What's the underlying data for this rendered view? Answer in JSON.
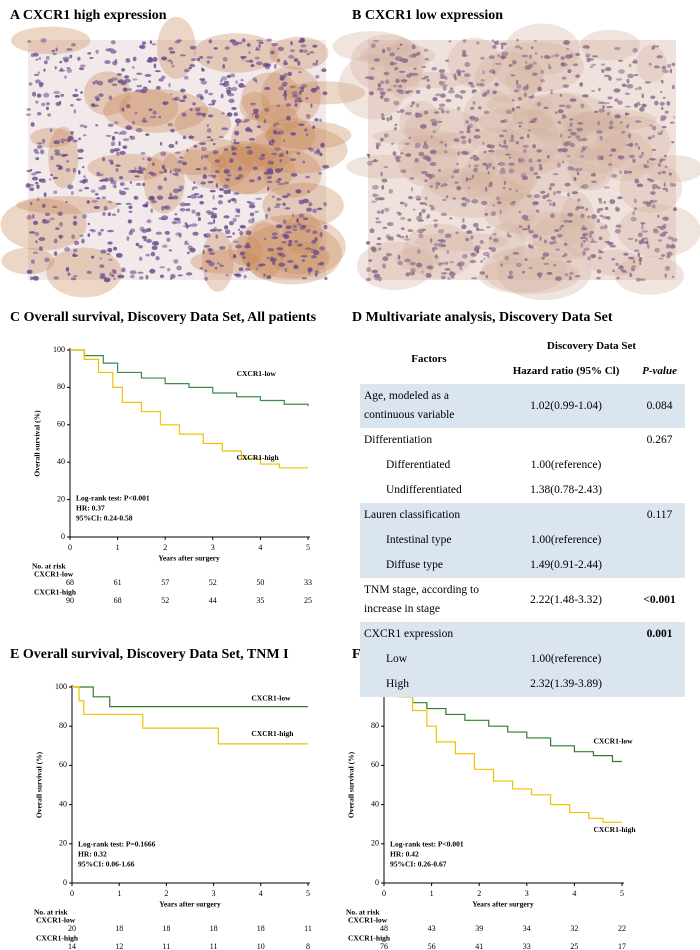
{
  "panels": {
    "a": {
      "title": "A CXCR1 high expression"
    },
    "b": {
      "title": "B CXCR1 low expression"
    }
  },
  "table": {
    "title": "D Multivariate analysis, Discovery Data Set",
    "header": {
      "factors": "Factors",
      "group": "Discovery Data Set",
      "hr": "Hazard ratio (95% Cl)",
      "p": "P-value"
    },
    "rows": [
      {
        "factor": "Age, modeled as a continuous variable",
        "hr": "1.02(0.99-1.04)",
        "p": "0.084",
        "shaded": true
      },
      {
        "factor": "Differentiation",
        "p": "0.267"
      },
      {
        "factor": "Differentiated",
        "hr": "1.00(reference)",
        "indent": true
      },
      {
        "factor": "Undifferentiated",
        "hr": "1.38(0.78-2.43)",
        "indent": true
      },
      {
        "factor": "Lauren classification",
        "p": "0.117",
        "shaded": true
      },
      {
        "factor": "Intestinal type",
        "hr": "1.00(reference)",
        "indent": true,
        "shaded": true
      },
      {
        "factor": "Diffuse type",
        "hr": "1.49(0.91-2.44)",
        "indent": true,
        "shaded": true
      },
      {
        "factor": "TNM stage, according to increase in stage",
        "hr": "2.22(1.48-3.32)",
        "p": "<0.001",
        "bold": true
      },
      {
        "factor": "CXCR1 expression",
        "p": "0.001",
        "bold": true,
        "shaded": true
      },
      {
        "factor": "Low",
        "hr": "1.00(reference)",
        "indent": true,
        "shaded": true
      },
      {
        "factor": "High",
        "hr": "2.32(1.39-3.89)",
        "indent": true,
        "shaded": true
      }
    ]
  },
  "chart_data": [
    {
      "type": "line",
      "title": "C Overall survival, Discovery Data Set, All patients",
      "xlabel": "Years after surgery",
      "ylabel": "Overall survival (%)",
      "xlim": [
        0,
        5
      ],
      "ylim": [
        0,
        100
      ],
      "xticks": [
        0,
        1,
        2,
        3,
        4,
        5
      ],
      "yticks": [
        0,
        20,
        40,
        60,
        80,
        100
      ],
      "step": true,
      "series": [
        {
          "name": "CXCR1-low",
          "color": "#3a8c48",
          "x": [
            0,
            0.3,
            0.7,
            1.0,
            1.5,
            2.0,
            2.5,
            3.0,
            3.5,
            4.0,
            4.5,
            5
          ],
          "values": [
            100,
            97,
            93,
            88,
            85,
            82,
            80,
            77,
            75,
            73,
            71,
            70
          ]
        },
        {
          "name": "CXCR1-high",
          "color": "#f2c200",
          "x": [
            0,
            0.3,
            0.6,
            0.9,
            1.1,
            1.5,
            1.9,
            2.3,
            2.8,
            3.2,
            3.6,
            4.0,
            4.4,
            5
          ],
          "values": [
            100,
            95,
            88,
            80,
            72,
            67,
            60,
            55,
            50,
            46,
            42,
            39,
            37,
            37
          ]
        }
      ],
      "annotations": [
        "Log-rank test: P<0.001",
        "HR: 0.37",
        "95%CI: 0.24-0.58"
      ],
      "at_risk": {
        "title": "No. at risk",
        "rows": [
          {
            "name": "CXCR1-low",
            "values": [
              68,
              61,
              57,
              52,
              50,
              33
            ]
          },
          {
            "name": "CXCR1-high",
            "values": [
              90,
              68,
              52,
              44,
              35,
              25
            ]
          }
        ]
      }
    },
    {
      "type": "line",
      "title": "E Overall survival, Discovery Data Set, TNM I",
      "xlabel": "Years after surgery",
      "ylabel": "Overall survival (%)",
      "xlim": [
        0,
        5
      ],
      "ylim": [
        0,
        100
      ],
      "xticks": [
        0,
        1,
        2,
        3,
        4,
        5
      ],
      "yticks": [
        0,
        20,
        40,
        60,
        80,
        100
      ],
      "step": true,
      "series": [
        {
          "name": "CXCR1-low",
          "color": "#2f7d2f",
          "x": [
            0,
            0.45,
            0.8,
            5
          ],
          "values": [
            100,
            95,
            90,
            90
          ]
        },
        {
          "name": "CXCR1-high",
          "color": "#f2c200",
          "x": [
            0,
            0.15,
            0.25,
            1.5,
            3.1,
            5
          ],
          "values": [
            100,
            93,
            86,
            79,
            71,
            71
          ]
        }
      ],
      "annotations": [
        "Log-rank test: P=0.1666",
        "HR: 0.32",
        "95%CI: 0.06-1.66"
      ],
      "at_risk": {
        "title": "No. at risk",
        "rows": [
          {
            "name": "CXCR1-low",
            "values": [
              20,
              18,
              18,
              18,
              18,
              11
            ]
          },
          {
            "name": "CXCR1-high",
            "values": [
              14,
              12,
              11,
              11,
              10,
              8
            ]
          }
        ]
      }
    },
    {
      "type": "line",
      "title": "F Overall survival, Discovery Data Set, TNM II or III",
      "xlabel": "Years after surgery",
      "ylabel": "Overall survival (%)",
      "xlim": [
        0,
        5
      ],
      "ylim": [
        0,
        100
      ],
      "xticks": [
        0,
        1,
        2,
        3,
        4,
        5
      ],
      "yticks": [
        0,
        20,
        40,
        60,
        80,
        100
      ],
      "step": true,
      "series": [
        {
          "name": "CXCR1-low",
          "color": "#2f7d2f",
          "x": [
            0,
            0.2,
            0.4,
            0.6,
            0.9,
            1.3,
            1.7,
            2.2,
            2.6,
            3.0,
            3.5,
            4.0,
            4.4,
            4.8,
            5
          ],
          "values": [
            100,
            98,
            95,
            92,
            89,
            86,
            83,
            80,
            77,
            74,
            70,
            67,
            65,
            62,
            62
          ]
        },
        {
          "name": "CXCR1-high",
          "color": "#f2c200",
          "x": [
            0,
            0.3,
            0.6,
            0.9,
            1.1,
            1.5,
            1.9,
            2.3,
            2.7,
            3.1,
            3.5,
            3.9,
            4.3,
            4.6,
            5
          ],
          "values": [
            100,
            95,
            88,
            80,
            72,
            66,
            58,
            52,
            48,
            45,
            40,
            36,
            33,
            31,
            31
          ]
        }
      ],
      "annotations": [
        "Log-rank test: P<0.001",
        "HR: 0.42",
        "95%CI: 0.26-0.67"
      ],
      "at_risk": {
        "title": "No. at risk",
        "rows": [
          {
            "name": "CXCR1-low",
            "values": [
              48,
              43,
              39,
              34,
              32,
              22
            ]
          },
          {
            "name": "CXCR1-high",
            "values": [
              76,
              56,
              41,
              33,
              25,
              17
            ]
          }
        ]
      }
    }
  ]
}
